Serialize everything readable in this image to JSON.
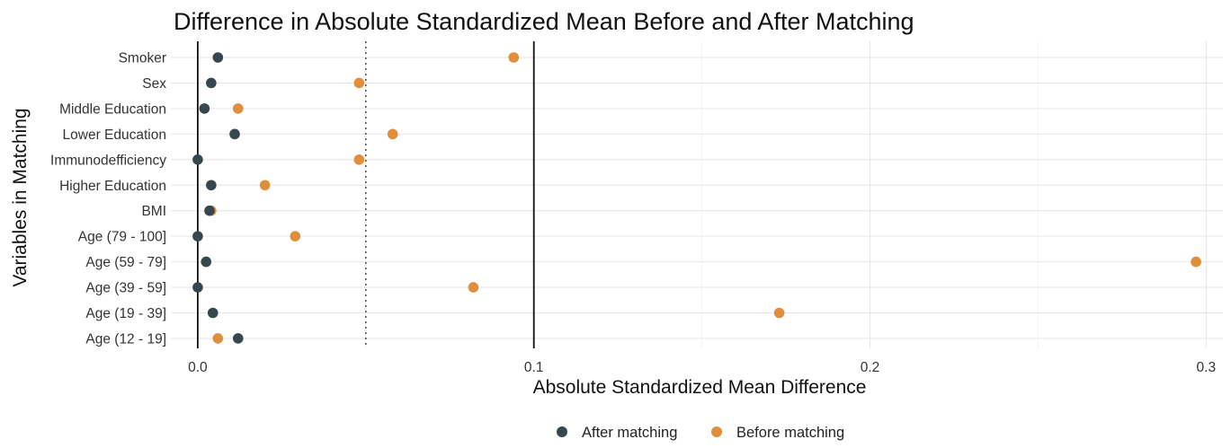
{
  "chart_data": {
    "type": "scatter",
    "title": "Difference in Absolute Standardized Mean Before and After Matching",
    "xlabel": "Absolute Standardized Mean Difference",
    "ylabel": "Variables in Matching",
    "xlim": [
      -0.008,
      0.305
    ],
    "x_ticks": [
      0.0,
      0.1,
      0.2,
      0.3
    ],
    "x_tick_labels": [
      "0.0",
      "0.1",
      "0.2",
      "0.3"
    ],
    "categories": [
      "Smoker",
      "Sex",
      "Middle Education",
      "Lower Education",
      "Immunodefficiency",
      "Higher Education",
      "BMI",
      "Age (79 - 100]",
      "Age (59 - 79]",
      "Age (39 - 59]",
      "Age (19 - 39]",
      "Age (12 - 19]"
    ],
    "series": [
      {
        "name": "Before matching",
        "color": "#E08E3C",
        "values": [
          0.094,
          0.048,
          0.012,
          0.058,
          0.048,
          0.02,
          0.004,
          0.029,
          0.297,
          0.082,
          0.173,
          0.006
        ]
      },
      {
        "name": "After matching",
        "color": "#37474F",
        "values": [
          0.006,
          0.004,
          0.002,
          0.011,
          0.0,
          0.004,
          0.0035,
          0.0,
          0.0025,
          0.0,
          0.0045,
          0.012
        ]
      }
    ],
    "legend_order": [
      "After matching",
      "Before matching"
    ],
    "reference_lines": [
      {
        "x": 0.0,
        "style": "solid"
      },
      {
        "x": 0.05,
        "style": "dotted"
      },
      {
        "x": 0.1,
        "style": "solid"
      }
    ],
    "grid": true,
    "legend_position": "bottom"
  }
}
